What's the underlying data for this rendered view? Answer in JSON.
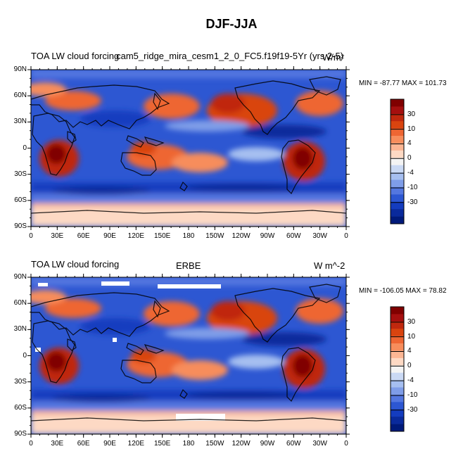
{
  "figure": {
    "title": "DJF-JJA"
  },
  "panels": [
    {
      "left_title": "TOA LW cloud forcing",
      "center_title": "cam5_ridge_mira_cesm1_2_0_FC5.f19f19-5Yr (yrs 2-5)",
      "units": "W/m²",
      "stats": "MIN = -87.77 MAX = 101.73"
    },
    {
      "left_title": "TOA LW cloud forcing",
      "center_title": "ERBE",
      "units": "W m^-2",
      "stats": "MIN = -106.05 MAX =  78.82"
    }
  ],
  "axes": {
    "lat_labels": [
      "90N",
      "60N",
      "30N",
      "0",
      "30S",
      "60S",
      "90S"
    ],
    "lon_labels": [
      "0",
      "30E",
      "60E",
      "90E",
      "120E",
      "150E",
      "180",
      "150W",
      "120W",
      "90W",
      "60W",
      "30W",
      "0"
    ]
  },
  "colorbar": {
    "labels": [
      "30",
      "10",
      "4",
      "0",
      "-4",
      "-10",
      "-30"
    ],
    "colors": [
      "#800000",
      "#a50f0f",
      "#c0280e",
      "#d9440f",
      "#ee6633",
      "#f78d5c",
      "#fbb694",
      "#fdd9c4",
      "#f4f4f4",
      "#cad9f4",
      "#a6bff0",
      "#7f9de8",
      "#5477e0",
      "#2d57d2",
      "#143cbf",
      "#0a2a9c",
      "#001a7a"
    ]
  },
  "chart_data": {
    "type": "heatmap",
    "title": "DJF-JJA",
    "variable": "TOA LW cloud forcing",
    "panels": [
      "cam5_ridge_mira_cesm1_2_0_FC5.f19f19-5Yr (yrs 2-5)",
      "ERBE"
    ],
    "contour_levels": [
      -40,
      -30,
      -20,
      -15,
      -10,
      -6,
      -4,
      -2,
      0,
      2,
      4,
      6,
      10,
      15,
      20,
      30,
      40
    ],
    "xlim": [
      0,
      360
    ],
    "ylim": [
      -90,
      90
    ],
    "panel1_min": -87.77,
    "panel1_max": 101.73,
    "panel2_min": -106.05,
    "panel2_max": 78.82
  }
}
